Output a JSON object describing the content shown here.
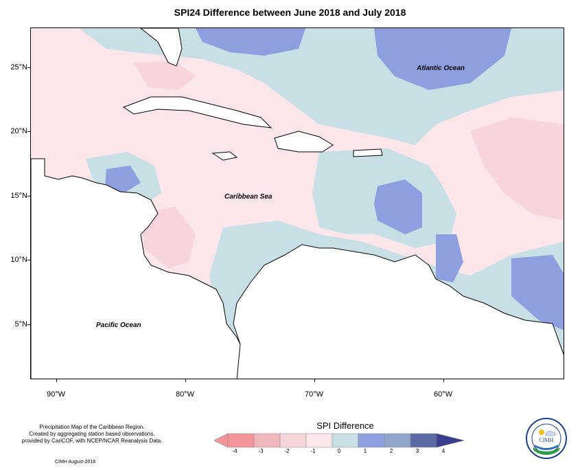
{
  "title": "SPI24 Difference between June 2018 and July 2018",
  "map": {
    "ocean_labels": {
      "atlantic": "Atlantic Ocean",
      "caribbean": "Caribbean Sea",
      "pacific": "Pacific Ocean"
    },
    "lat_labels": [
      "25°N",
      "20°N",
      "15°N",
      "10°N",
      "5°N"
    ],
    "lon_labels": [
      "90°W",
      "80°W",
      "70°W",
      "60°W"
    ],
    "colors": {
      "minus4": "#f4959b",
      "minus3": "#f0b8bd",
      "minus2": "#f8d5da",
      "minus1": "#fbe6ea",
      "zero": "#c9dfe6",
      "plus1": "#8d9fde",
      "plus2": "#8fa6c8",
      "plus3": "#5c6aa6",
      "plus4": "#3a3e8e"
    }
  },
  "footer": {
    "line1": "Precipitation Map of the Caribbean Region.",
    "line2": "Created by aggregating station based observations,",
    "line3": "provided by CariCOF, with NCEP/NCAR Reanalysis Data.",
    "date": "CIMH August-2018"
  },
  "legend": {
    "title": "SPI Difference",
    "ticks": [
      "-4",
      "-3",
      "-2",
      "-1",
      "0",
      "1",
      "2",
      "3",
      "4"
    ]
  },
  "logo": {
    "text": "CIMH"
  }
}
